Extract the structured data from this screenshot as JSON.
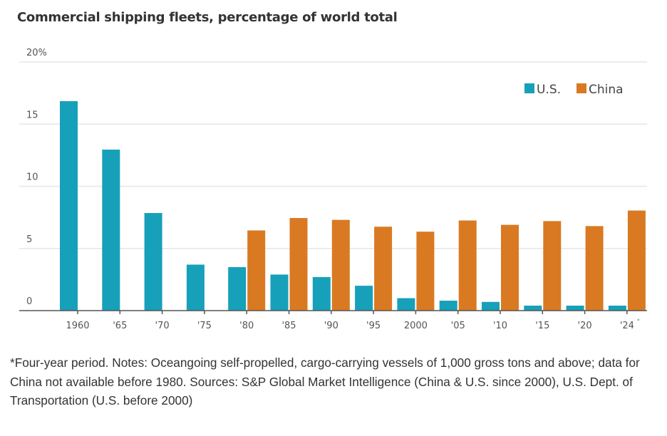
{
  "chart_data": {
    "type": "bar",
    "title": "Commercial shipping fleets, percentage of world total",
    "xlabel": "",
    "ylabel": "",
    "ylim": [
      0,
      20
    ],
    "yticks": [
      0,
      5,
      10,
      15,
      20
    ],
    "ytick_labels": [
      "0",
      "5",
      "10",
      "15",
      "20%"
    ],
    "grid": true,
    "legend_position": "top-right",
    "categories": [
      "1960",
      "'65",
      "'70",
      "'75",
      "'80",
      "'85",
      "'90",
      "'95",
      "2000",
      "'05",
      "'10",
      "'15",
      "'20",
      "'24"
    ],
    "category_markers": [
      "",
      "",
      "",
      "",
      "",
      "",
      "",
      "",
      "",
      "",
      "",
      "",
      "",
      "*"
    ],
    "series": [
      {
        "name": "U.S.",
        "color": "#17a0b9",
        "values": [
          16.85,
          12.95,
          7.85,
          3.7,
          3.5,
          2.9,
          2.7,
          2.0,
          1.0,
          0.8,
          0.7,
          0.4,
          0.4,
          0.4
        ]
      },
      {
        "name": "China",
        "color": "#d97a22",
        "values": [
          null,
          null,
          null,
          null,
          6.45,
          7.45,
          7.3,
          6.75,
          6.35,
          7.25,
          6.9,
          7.2,
          6.8,
          8.05
        ]
      }
    ]
  },
  "footnote": "*Four-year period. Notes: Oceangoing self-propelled, cargo-carrying vessels of 1,000 gross tons and above; data for China not available before 1980. Sources: S&P Global Market Intelligence (China & U.S. since 2000), U.S. Dept. of Transportation (U.S. before 2000)",
  "colors": {
    "grid": "#e6e6e6",
    "axis": "#555555",
    "text": "#333333"
  }
}
